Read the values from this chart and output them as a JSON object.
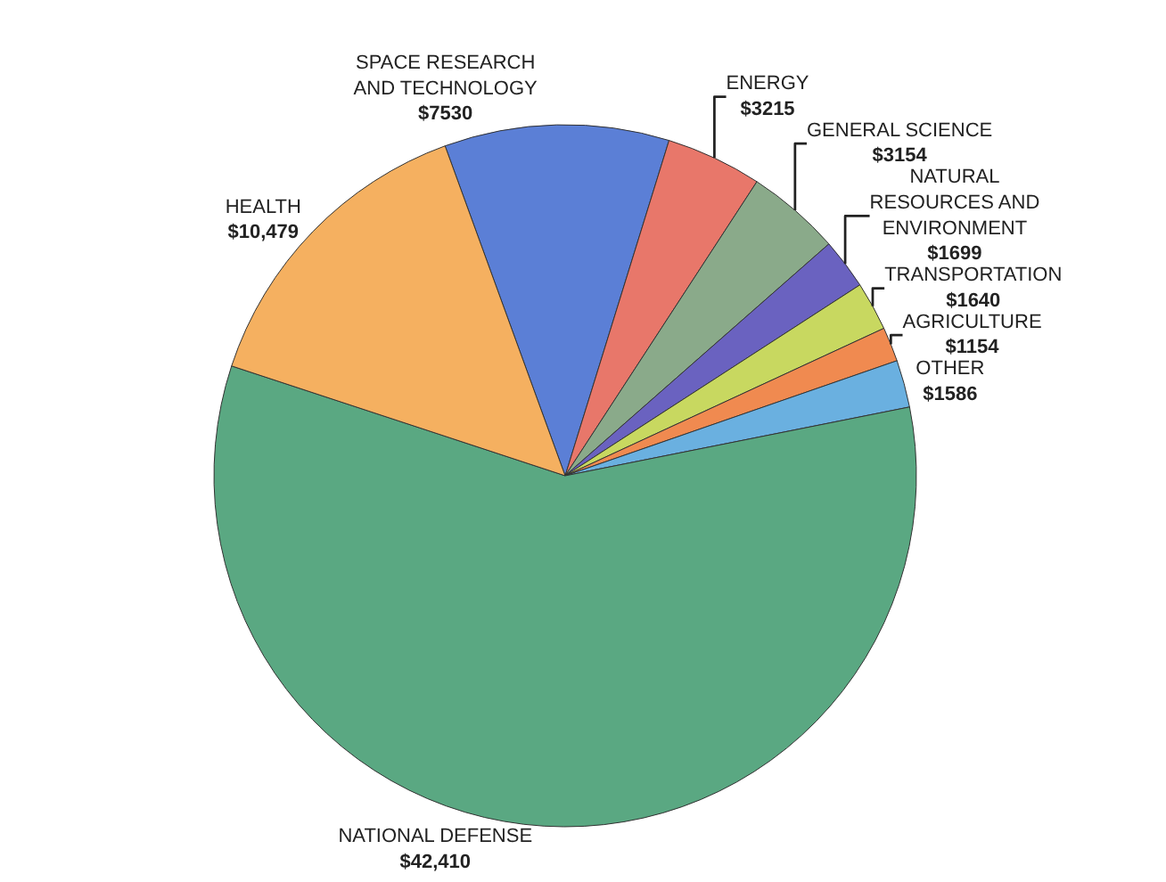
{
  "chart_data": {
    "type": "pie",
    "categories": [
      "SPACE RESEARCH AND TECHNOLOGY",
      "ENERGY",
      "GENERAL SCIENCE",
      "NATURAL RESOURCES AND ENVIRONMENT",
      "TRANSPORTATION",
      "AGRICULTURE",
      "OTHER",
      "NATIONAL DEFENSE",
      "HEALTH"
    ],
    "values": [
      7530,
      3215,
      3154,
      1699,
      1640,
      1154,
      1586,
      42410,
      10479
    ],
    "value_labels": [
      "$7530",
      "$3215",
      "$3154",
      "$1699",
      "$1640",
      "$1154",
      "$1586",
      "$42,410",
      "$10,479"
    ],
    "colors": [
      "#5b7fd6",
      "#e8776a",
      "#8aaa8a",
      "#6a62c0",
      "#c8d860",
      "#f08a50",
      "#6ab0e0",
      "#5aa882",
      "#f5b060"
    ],
    "legend": false
  }
}
